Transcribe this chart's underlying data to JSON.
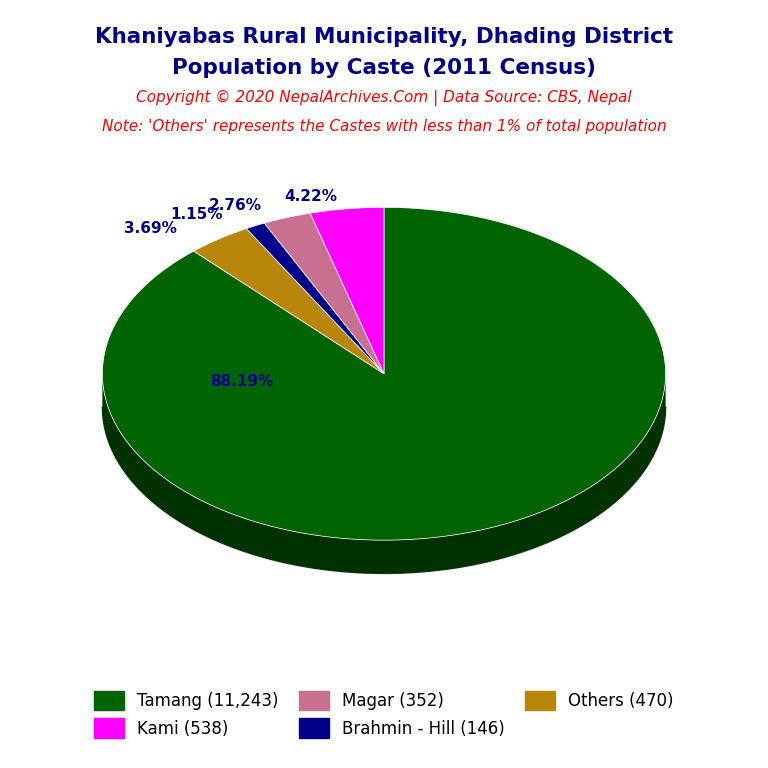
{
  "title_line1": "Khaniyabas Rural Municipality, Dhading District",
  "title_line2": "Population by Caste (2011 Census)",
  "title_color": "#00008B",
  "copyright_text": "Copyright © 2020 NepalArchives.Com | Data Source: CBS, Nepal",
  "note_text": "Note: 'Others' represents the Castes with less than 1% of total population",
  "red_text_color": "#FF0000",
  "labels": [
    "Tamang",
    "Others",
    "Brahmin - Hill",
    "Magar",
    "Kami"
  ],
  "values": [
    11243,
    470,
    146,
    352,
    538
  ],
  "percentages": [
    "88.19%",
    "3.69%",
    "1.15%",
    "2.76%",
    "4.22%"
  ],
  "colors": [
    "#006400",
    "#B8860B",
    "#00008B",
    "#C87090",
    "#FF00FF"
  ],
  "depth_colors": [
    "#003200",
    "#5a4000",
    "#000044",
    "#7a3050",
    "#990099"
  ],
  "shadow_color": "#1a3a1a",
  "legend_labels": [
    "Tamang (11,243)",
    "Kami (538)",
    "Magar (352)",
    "Brahmin - Hill (146)",
    "Others (470)"
  ],
  "legend_colors": [
    "#006400",
    "#FF00FF",
    "#C87090",
    "#00008B",
    "#B8860B"
  ],
  "autopct_color": "#00008B",
  "figsize": [
    7.68,
    7.68
  ],
  "dpi": 100
}
